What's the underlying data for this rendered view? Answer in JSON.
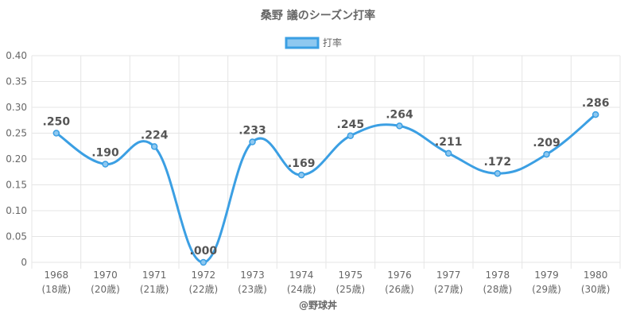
{
  "chart_data": {
    "type": "line",
    "title": "桑野 議のシーズン打率",
    "legend": {
      "position": "top",
      "label": "打率"
    },
    "categories": [
      [
        "1968",
        "(18歳)"
      ],
      [
        "1970",
        "(20歳)"
      ],
      [
        "1971",
        "(21歳)"
      ],
      [
        "1972",
        "(22歳)"
      ],
      [
        "1973",
        "(23歳)"
      ],
      [
        "1974",
        "(24歳)"
      ],
      [
        "1975",
        "(25歳)"
      ],
      [
        "1976",
        "(26歳)"
      ],
      [
        "1977",
        "(27歳)"
      ],
      [
        "1978",
        "(28歳)"
      ],
      [
        "1979",
        "(29歳)"
      ],
      [
        "1980",
        "(30歳)"
      ]
    ],
    "series": [
      {
        "name": "打率",
        "values": [
          0.25,
          0.19,
          0.224,
          0.0,
          0.233,
          0.169,
          0.245,
          0.264,
          0.211,
          0.172,
          0.209,
          0.286
        ],
        "labels": [
          ".250",
          ".190",
          ".224",
          ".000",
          ".233",
          ".169",
          ".245",
          ".264",
          ".211",
          ".172",
          ".209",
          ".286"
        ]
      }
    ],
    "ylim": [
      0,
      0.4
    ],
    "yticks": [
      "0",
      "0.05",
      "0.10",
      "0.15",
      "0.20",
      "0.25",
      "0.30",
      "0.35",
      "0.40"
    ],
    "grid": true,
    "colors": {
      "line": "#3b9fe3",
      "fill": "#8ec8f0",
      "grid": "#e5e5e5"
    }
  },
  "footer": {
    "credit": "@野球丼"
  }
}
